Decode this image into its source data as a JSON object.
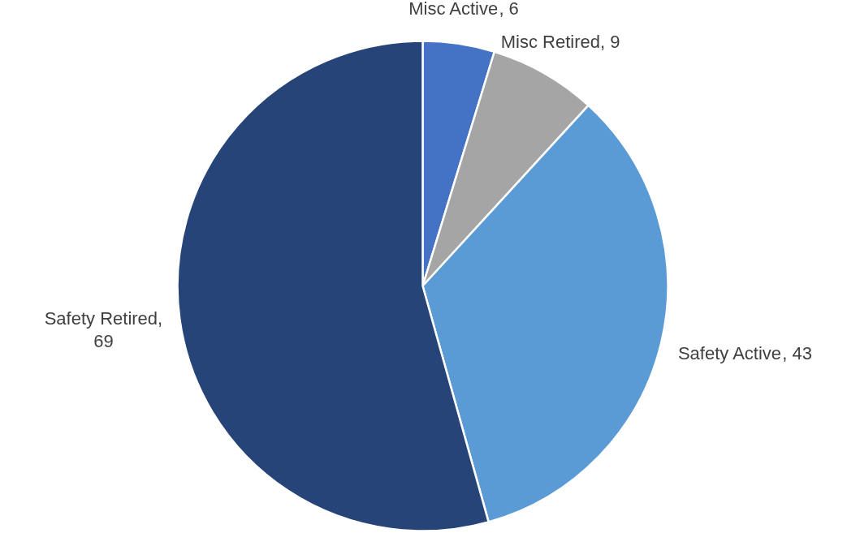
{
  "chart_data": {
    "type": "pie",
    "categories": [
      "Misc Active",
      "Misc Retired",
      "Safety Active",
      "Safety Retired"
    ],
    "values": [
      6,
      9,
      43,
      69
    ],
    "value_labels": [
      ", 6",
      ", 9",
      ", 43",
      ",\n69"
    ],
    "colors": [
      "#4472c4",
      "#a5a5a5",
      "#5b9bd5",
      "#264478"
    ]
  }
}
